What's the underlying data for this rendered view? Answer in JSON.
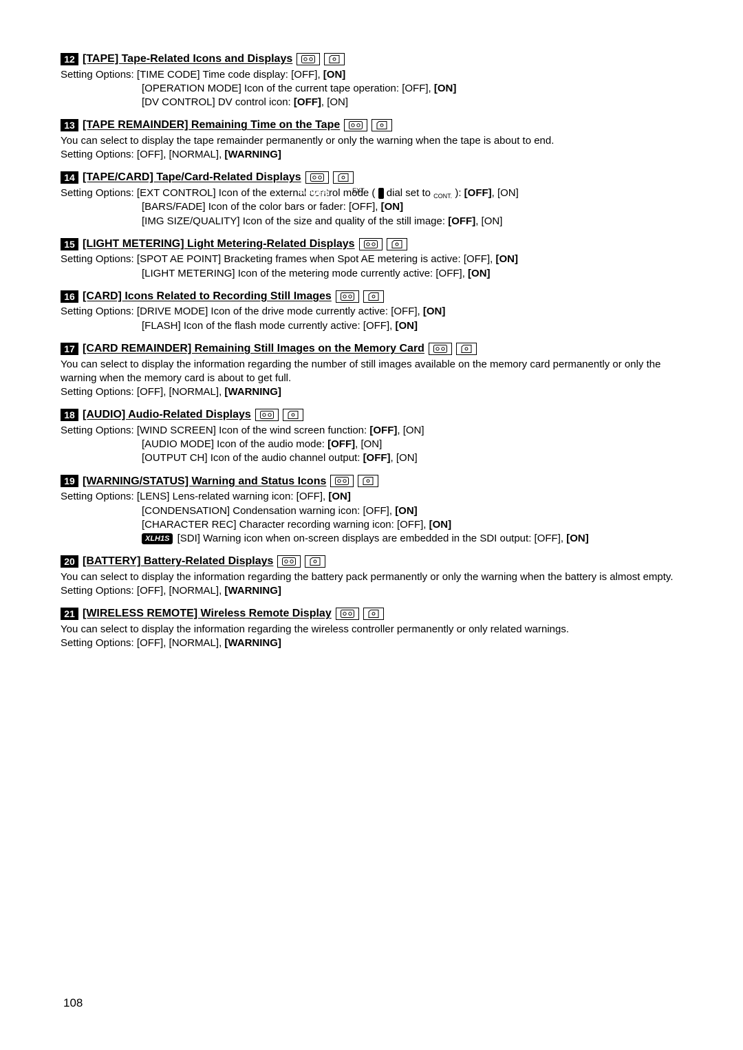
{
  "page_number": "108",
  "icons": {
    "tape_svg": "tape",
    "card_svg": "card"
  },
  "sections": [
    {
      "num": "12",
      "title": "[TAPE] Tape-Related Icons and Displays",
      "icons": [
        "tape",
        "card"
      ],
      "lines": [
        "Setting Options: [TIME CODE] Time code display: [OFF], <b>[ON]</b>",
        "[OPERATION MODE] Icon of the current tape operation: [OFF], <b>[ON]</b>",
        "[DV CONTROL] DV control icon: <b>[OFF]</b>, [ON]"
      ],
      "indent_from": 1
    },
    {
      "num": "13",
      "title": "[TAPE REMAINDER] Remaining Time on the Tape",
      "icons": [
        "tape",
        "card"
      ],
      "lines": [
        "You can select to display the tape remainder permanently or only the warning when the tape is about to end.",
        "Setting Options: [OFF], [NORMAL], <b>[WARNING]</b>"
      ]
    },
    {
      "num": "14",
      "title": "[TAPE/CARD] Tape/Card-Related Displays",
      "icons": [
        "tape",
        "card"
      ],
      "lines": [
        "Setting Options: [EXT CONTROL] Icon of the external control mode ( <span class=\"power-badge\">POWER</span> dial set to <span class=\"ext-cont\">EXT.<br>CONT.</span> ): <b>[OFF]</b>, [ON]",
        "[BARS/FADE] Icon of the color bars or fader: [OFF], <b>[ON]</b>",
        "[IMG SIZE/QUALITY] Icon of the size and quality of the still image: <b>[OFF]</b>, [ON]"
      ],
      "indent_from": 1
    },
    {
      "num": "15",
      "title": "[LIGHT METERING] Light Metering-Related Displays",
      "icons": [
        "tape",
        "card"
      ],
      "lines": [
        "Setting Options: [SPOT AE POINT] Bracketing frames when Spot AE metering is active: [OFF], <b>[ON]</b>",
        "[LIGHT METERING] Icon of the metering mode currently active: [OFF], <b>[ON]</b>"
      ],
      "indent_from": 1
    },
    {
      "num": "16",
      "title": "[CARD] Icons Related to Recording Still Images",
      "icons": [
        "tape",
        "card"
      ],
      "lines": [
        "Setting Options: [DRIVE MODE] Icon of the drive mode currently active: [OFF], <b>[ON]</b>",
        "[FLASH] Icon of the flash mode currently active: [OFF], <b>[ON]</b>"
      ],
      "indent_from": 1
    },
    {
      "num": "17",
      "title": "[CARD REMAINDER] Remaining Still Images on the Memory Card",
      "icons": [
        "tape",
        "card"
      ],
      "lines": [
        "You can select to display the information regarding the number of still images available on the memory card permanently or only the warning when the memory card is about to get full.",
        "Setting Options: [OFF], [NORMAL], <b>[WARNING]</b>"
      ]
    },
    {
      "num": "18",
      "title": "[AUDIO] Audio-Related Displays",
      "icons": [
        "tape",
        "card"
      ],
      "lines": [
        "Setting Options: [WIND SCREEN] Icon of the wind screen function: <b>[OFF]</b>, [ON]",
        "[AUDIO MODE] Icon of the audio mode: <b>[OFF]</b>, [ON]",
        "[OUTPUT CH] Icon of the audio channel output: <b>[OFF]</b>, [ON]"
      ],
      "indent_from": 1
    },
    {
      "num": "19",
      "title": "[WARNING/STATUS] Warning and Status Icons",
      "icons": [
        "tape",
        "card"
      ],
      "lines": [
        "Setting Options: [LENS] Lens-related warning icon: [OFF], <b>[ON]</b>",
        "[CONDENSATION] Condensation warning icon: [OFF], <b>[ON]</b>",
        "[CHARACTER REC] Character recording warning icon: [OFF], <b>[ON]</b>",
        "<span class=\"model-badge\">XLH1S</span> [SDI] Warning icon when on-screen displays are embedded in the SDI output: [OFF], <b>[ON]</b>"
      ],
      "indent_from": 1
    },
    {
      "num": "20",
      "title": "[BATTERY] Battery-Related Displays",
      "icons": [
        "tape",
        "card"
      ],
      "lines": [
        "You can select to display the information regarding the battery pack permanently or only the warning when the battery is almost empty.",
        "Setting Options: [OFF], [NORMAL], <b>[WARNING]</b>"
      ]
    },
    {
      "num": "21",
      "title": "[WIRELESS REMOTE] Wireless Remote Display",
      "icons": [
        "tape",
        "card"
      ],
      "lines": [
        "You can select to display the information regarding the wireless controller permanently or only related warnings.",
        "Setting Options: [OFF], [NORMAL], <b>[WARNING]</b>"
      ]
    }
  ]
}
